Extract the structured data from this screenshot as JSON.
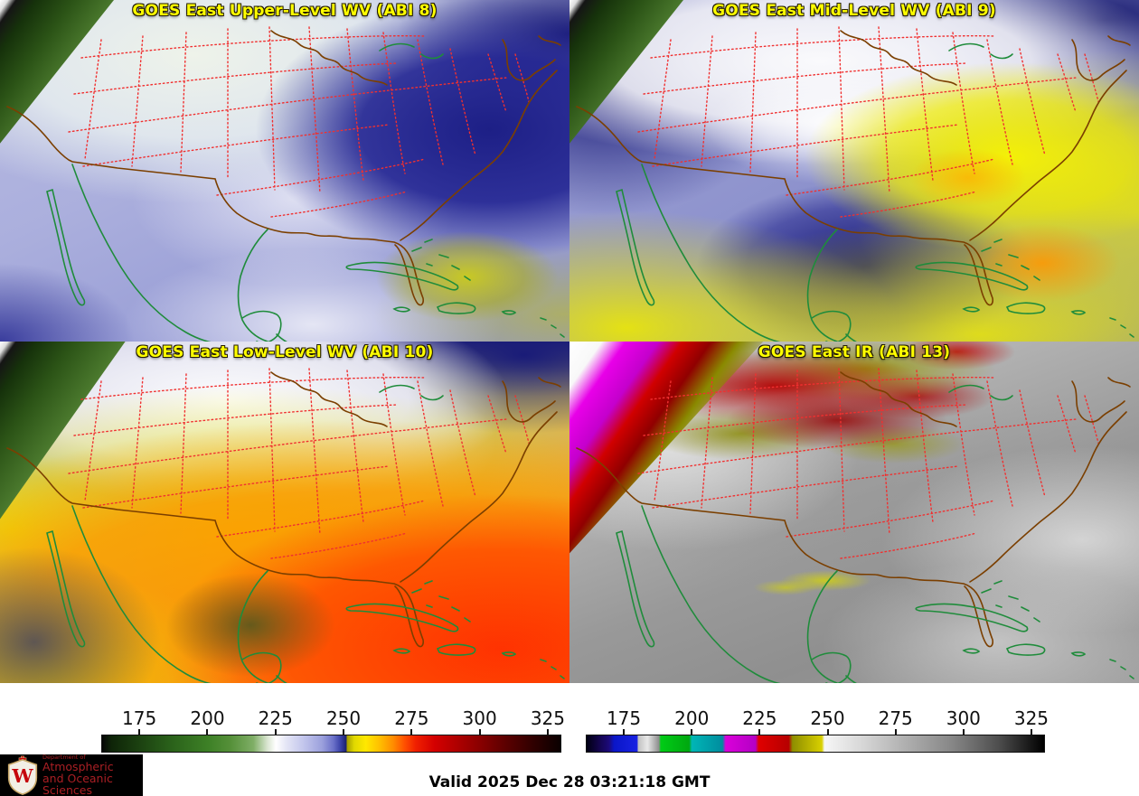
{
  "panels": [
    {
      "id": "upper_wv",
      "title": "GOES East Upper-Level WV (ABI 8)"
    },
    {
      "id": "mid_wv",
      "title": "GOES East Mid-Level WV (ABI 9)"
    },
    {
      "id": "low_wv",
      "title": "GOES East Low-Level WV (ABI 10)"
    },
    {
      "id": "ir",
      "title": "GOES East IR (ABI 13)"
    }
  ],
  "colors": {
    "panel_title": "#ffff00",
    "state_boundary": "#f03030",
    "us_coastline": "#7b3f00",
    "intl_coastline": "#1f8c3b",
    "footer_text": "#000000",
    "logo_bg": "#000000",
    "logo_text": "#ab1f24",
    "crest_red": "#c5050c"
  },
  "colorbars": [
    {
      "id": "wv_colorbar",
      "ticks": [
        175,
        200,
        225,
        250,
        275,
        300,
        325
      ],
      "range": [
        161,
        330
      ],
      "stops": [
        [
          "0%",
          "#060606"
        ],
        [
          "2%",
          "#0e2408"
        ],
        [
          "8.3%",
          "#1c4211"
        ],
        [
          "15%",
          "#2a611a"
        ],
        [
          "23.1%",
          "#3d8026"
        ],
        [
          "28%",
          "#559039"
        ],
        [
          "33%",
          "#7fae66"
        ],
        [
          "36%",
          "#d8e4cf"
        ],
        [
          "37.9%",
          "#ffffff"
        ],
        [
          "40%",
          "#e6e7f6"
        ],
        [
          "44%",
          "#c2c5ec"
        ],
        [
          "48%",
          "#9ba0dc"
        ],
        [
          "50.5%",
          "#6a70c8"
        ],
        [
          "52%",
          "#3a42a8"
        ],
        [
          "53.2%",
          "#1c2270"
        ],
        [
          "53.5%",
          "#a8a000"
        ],
        [
          "55%",
          "#e0d800"
        ],
        [
          "57.5%",
          "#ffe800"
        ],
        [
          "60.5%",
          "#ffc000"
        ],
        [
          "63.5%",
          "#ff8c00"
        ],
        [
          "66%",
          "#ff5000"
        ],
        [
          "68.4%",
          "#f02000"
        ],
        [
          "72.5%",
          "#d40000"
        ],
        [
          "77.5%",
          "#ae0000"
        ],
        [
          "82.2%",
          "#8b0000"
        ],
        [
          "88%",
          "#5c0000"
        ],
        [
          "94%",
          "#300000"
        ],
        [
          "100%",
          "#0a0000"
        ]
      ]
    },
    {
      "id": "ir_colorbar",
      "ticks": [
        175,
        200,
        225,
        250,
        275,
        300,
        325
      ],
      "range": [
        161,
        330
      ],
      "stops": [
        [
          "0%",
          "#000012"
        ],
        [
          "2.5%",
          "#120448"
        ],
        [
          "4.9%",
          "#1c0a7a"
        ],
        [
          "6%",
          "#0a16c8"
        ],
        [
          "11%",
          "#1822e2"
        ],
        [
          "11.3%",
          "#c2c2c2"
        ],
        [
          "13.3%",
          "#e8e8e8"
        ],
        [
          "15.8%",
          "#8e8e8e"
        ],
        [
          "16.2%",
          "#00cc16"
        ],
        [
          "22.4%",
          "#00a810"
        ],
        [
          "23%",
          "#00b6b6"
        ],
        [
          "29.7%",
          "#008c9e"
        ],
        [
          "30.4%",
          "#da00da"
        ],
        [
          "36.9%",
          "#b400c4"
        ],
        [
          "37.6%",
          "#e00000"
        ],
        [
          "44.2%",
          "#b60000"
        ],
        [
          "45%",
          "#8e8e00"
        ],
        [
          "51.4%",
          "#d8d000"
        ],
        [
          "52%",
          "#f6f6f6"
        ],
        [
          "60%",
          "#d8d8d8"
        ],
        [
          "70%",
          "#aeaeae"
        ],
        [
          "80%",
          "#868686"
        ],
        [
          "90%",
          "#4e4e4e"
        ],
        [
          "100%",
          "#000000"
        ]
      ]
    }
  ],
  "footer": {
    "valid": "Valid 2025 Dec 28 03:21:18 GMT"
  },
  "logo": {
    "monogram": "W",
    "line1": "Department of",
    "line2": "Atmospheric",
    "line3": "and Oceanic Sciences"
  }
}
